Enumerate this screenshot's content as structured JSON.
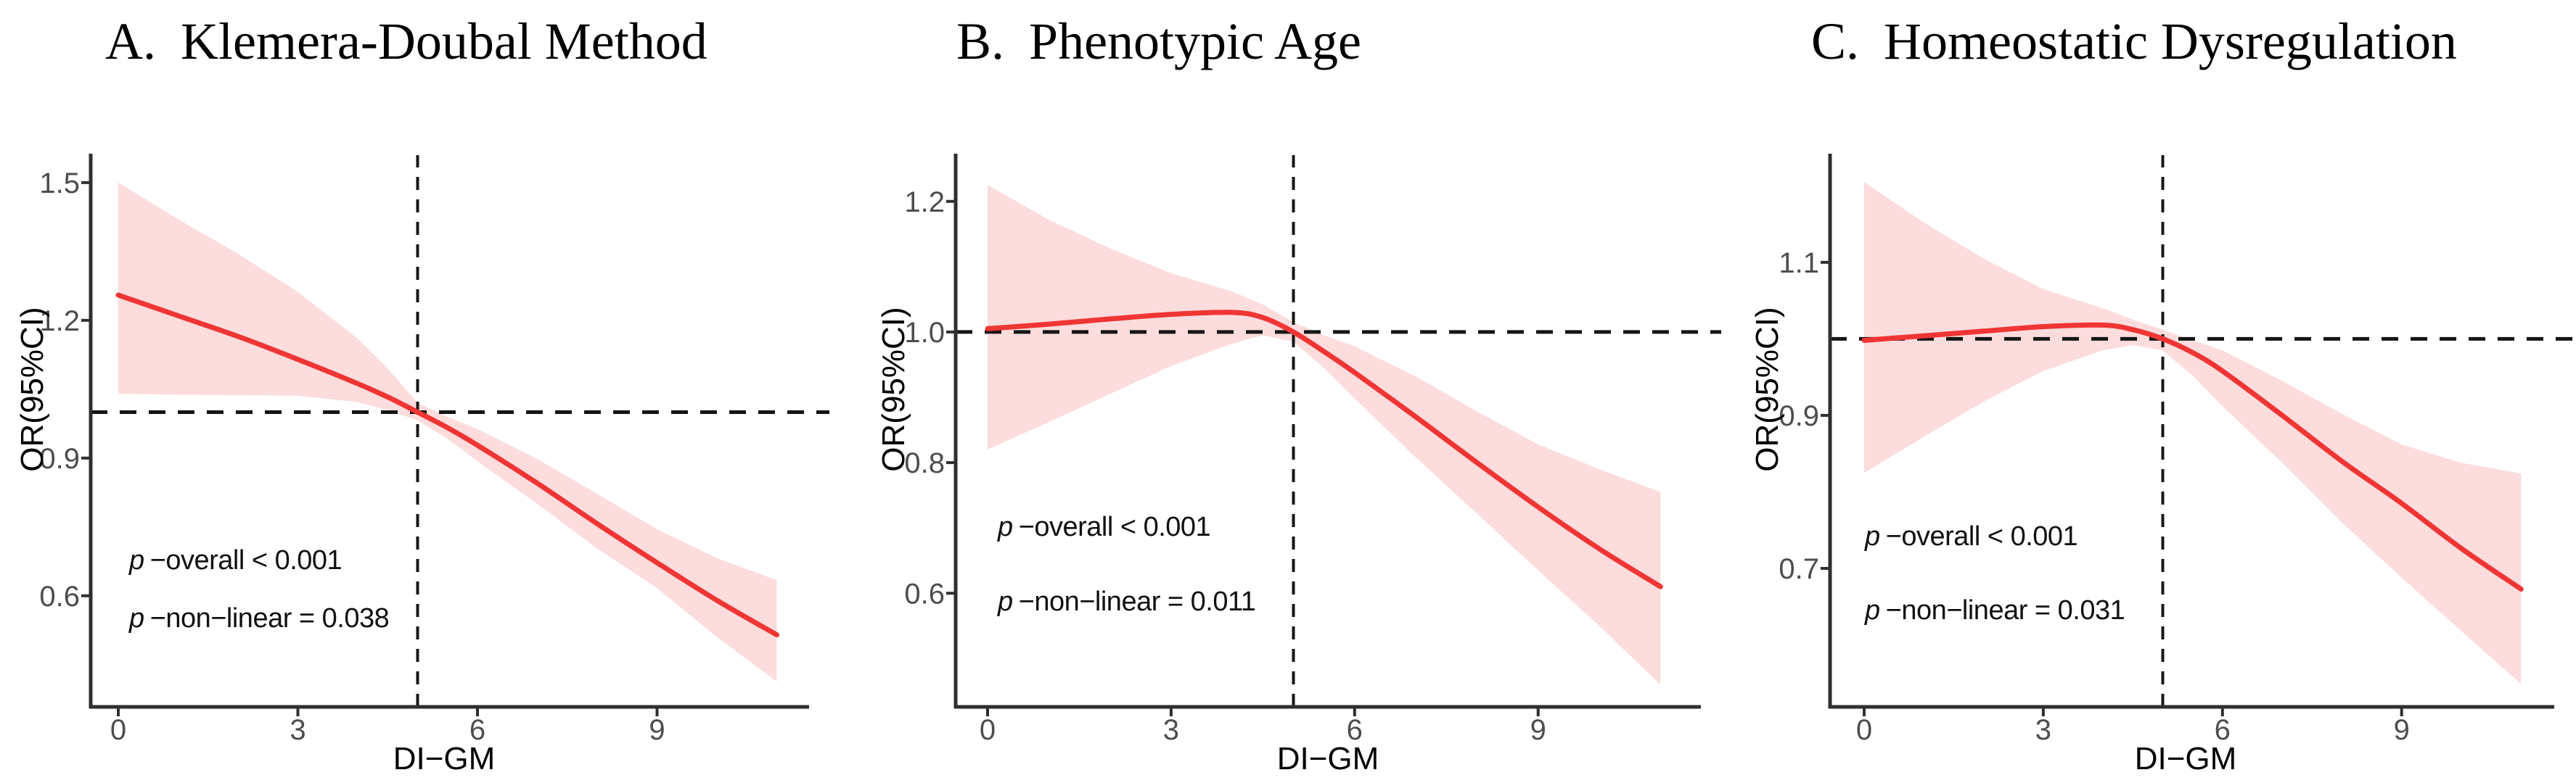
{
  "figure": {
    "background": "#ffffff",
    "colors": {
      "curve": "#f03535",
      "band": "#fcdcdc",
      "dashed": "#151515",
      "axis": "#2f2f2f",
      "tick_label": "#4d4d4d",
      "text": "#000000"
    }
  },
  "chart_data": [
    {
      "type": "line",
      "panel_label": "A.",
      "title": "Klemera-Doubal Method",
      "xlabel": "DI−GM",
      "ylabel": "OR(95%CI)",
      "x_ticks": [
        0,
        3,
        6,
        9
      ],
      "y_ticks": [
        0.6,
        0.9,
        1.2,
        1.5
      ],
      "xlim": [
        -0.46,
        11.54
      ],
      "ylim": [
        0.358,
        1.563
      ],
      "reference": {
        "or": 1.0,
        "x": 5
      },
      "legend": "none",
      "grid": "off",
      "annotations": [
        {
          "sym": "p",
          "text": "−overall < 0.001"
        },
        {
          "sym": "p",
          "text": "−non−linear = 0.038"
        }
      ],
      "series": {
        "x": [
          0,
          1,
          2,
          3,
          4,
          4.5,
          5,
          5.5,
          6,
          7,
          8,
          9,
          10,
          11
        ],
        "or": [
          1.255,
          1.21,
          1.165,
          1.115,
          1.062,
          1.033,
          1.0,
          0.966,
          0.928,
          0.845,
          0.757,
          0.672,
          0.59,
          0.515
        ],
        "ci_low": [
          1.04,
          1.038,
          1.037,
          1.036,
          1.022,
          1.005,
          0.982,
          0.942,
          0.893,
          0.8,
          0.703,
          0.617,
          0.51,
          0.413
        ],
        "ci_high": [
          1.5,
          1.42,
          1.345,
          1.262,
          1.16,
          1.095,
          1.02,
          0.99,
          0.963,
          0.898,
          0.822,
          0.745,
          0.682,
          0.634
        ]
      }
    },
    {
      "type": "line",
      "panel_label": "B.",
      "title": "Phenotypic Age",
      "xlabel": "DI−GM",
      "ylabel": "OR(95%CI)",
      "x_ticks": [
        0,
        3,
        6,
        9
      ],
      "y_ticks": [
        0.6,
        0.8,
        1.0,
        1.2
      ],
      "xlim": [
        -0.52,
        11.66
      ],
      "ylim": [
        0.426,
        1.273
      ],
      "reference": {
        "or": 1.0,
        "x": 5
      },
      "legend": "none",
      "grid": "off",
      "annotations": [
        {
          "sym": "p",
          "text": "−overall < 0.001"
        },
        {
          "sym": "p",
          "text": "−non−linear = 0.011"
        }
      ],
      "series": {
        "x": [
          0,
          1,
          2,
          3,
          4,
          4.5,
          5,
          5.5,
          6,
          7,
          8,
          9,
          10,
          11
        ],
        "or": [
          1.005,
          1.012,
          1.02,
          1.027,
          1.03,
          1.022,
          1.0,
          0.97,
          0.938,
          0.87,
          0.8,
          0.732,
          0.668,
          0.61
        ],
        "ci_low": [
          0.82,
          0.862,
          0.905,
          0.948,
          0.982,
          0.995,
          0.985,
          0.945,
          0.898,
          0.808,
          0.722,
          0.635,
          0.55,
          0.46
        ],
        "ci_high": [
          1.225,
          1.172,
          1.128,
          1.09,
          1.062,
          1.042,
          1.015,
          0.995,
          0.978,
          0.932,
          0.878,
          0.828,
          0.79,
          0.755
        ]
      }
    },
    {
      "type": "line",
      "panel_label": "C.",
      "title": "Homeostatic Dysregulation",
      "xlabel": "DI−GM",
      "ylabel": "OR(95%CI)",
      "x_ticks": [
        0,
        3,
        6,
        9
      ],
      "y_ticks": [
        0.7,
        0.9,
        1.1
      ],
      "xlim": [
        -0.57,
        11.55
      ],
      "ylim": [
        0.519,
        1.242
      ],
      "reference": {
        "or": 1.0,
        "x": 5
      },
      "legend": "none",
      "grid": "off",
      "annotations": [
        {
          "sym": "p",
          "text": "−overall < 0.001"
        },
        {
          "sym": "p",
          "text": "−non−linear = 0.031"
        }
      ],
      "series": {
        "x": [
          0,
          1,
          2,
          3,
          4,
          4.5,
          5,
          5.5,
          6,
          7,
          8,
          9,
          10,
          11
        ],
        "or": [
          0.998,
          1.004,
          1.01,
          1.016,
          1.018,
          1.012,
          1.0,
          0.982,
          0.958,
          0.9,
          0.84,
          0.785,
          0.726,
          0.673
        ],
        "ci_low": [
          0.825,
          0.872,
          0.918,
          0.958,
          0.985,
          0.992,
          0.985,
          0.952,
          0.912,
          0.838,
          0.76,
          0.688,
          0.618,
          0.549
        ],
        "ci_high": [
          1.205,
          1.152,
          1.105,
          1.065,
          1.04,
          1.025,
          1.012,
          0.998,
          0.985,
          0.945,
          0.902,
          0.862,
          0.838,
          0.824
        ]
      }
    }
  ]
}
